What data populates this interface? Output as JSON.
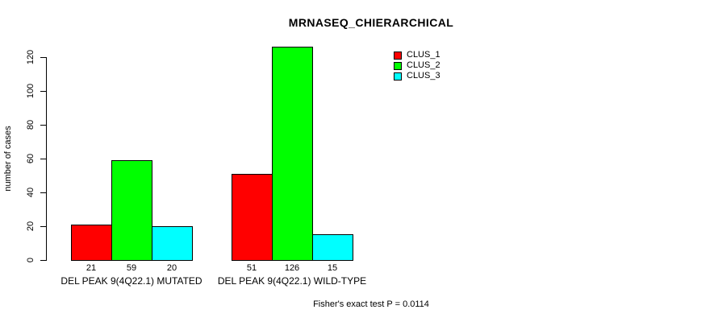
{
  "chart_data": {
    "type": "bar",
    "title": "MRNASEQ_CHIERARCHICAL",
    "ylabel": "number of cases",
    "xlabel": "",
    "categories": [
      "DEL PEAK 9(4Q22.1) MUTATED",
      "DEL PEAK 9(4Q22.1) WILD-TYPE"
    ],
    "series": [
      {
        "name": "CLUS_1",
        "color": "#ff0000",
        "values": [
          21,
          51
        ]
      },
      {
        "name": "CLUS_2",
        "color": "#00ff00",
        "values": [
          59,
          126
        ]
      },
      {
        "name": "CLUS_3",
        "color": "#00ffff",
        "values": [
          20,
          15
        ]
      }
    ],
    "yticks": [
      0,
      20,
      40,
      60,
      80,
      100,
      120
    ],
    "ylim": [
      0,
      126
    ],
    "grid": false,
    "show_value_labels": true,
    "legend_position": "top-right",
    "annotation": "Fisher's exact test P = 0.0114",
    "bar_border_color": "#000000",
    "axis_color": "#000000",
    "text_color": "#000000",
    "background": "#ffffff"
  }
}
